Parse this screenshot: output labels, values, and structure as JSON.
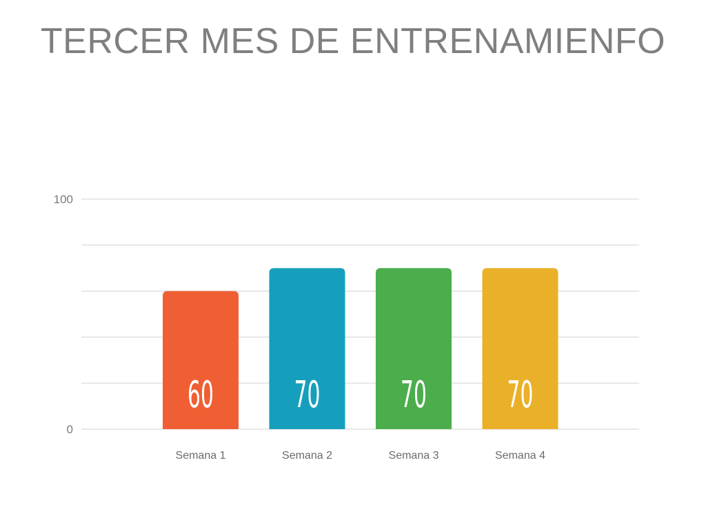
{
  "chart_data": {
    "type": "bar",
    "title": "TERCER MES DE ENTRENAMIENFO",
    "categories": [
      "Semana 1",
      "Semana 2",
      "Semana 3",
      "Semana 4"
    ],
    "values": [
      60,
      70,
      70,
      70
    ],
    "data_labels": [
      "60",
      "70",
      "70",
      "70"
    ],
    "colors": [
      "#f05f33",
      "#169fbc",
      "#4bad4c",
      "#ebb02a"
    ],
    "ylim": [
      0,
      100
    ],
    "yticks": [
      0,
      100
    ],
    "gridlines": [
      0,
      20,
      40,
      60,
      80,
      100
    ],
    "grid": true,
    "xlabel": "",
    "ylabel": ""
  }
}
